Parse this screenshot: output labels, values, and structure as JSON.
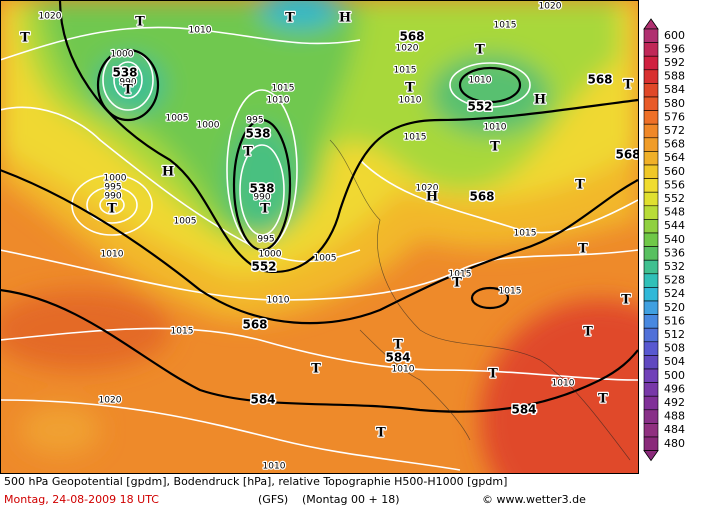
{
  "map": {
    "labels": [
      "1020",
      "T",
      "T",
      "H",
      "T",
      "1010",
      "1015",
      "1020",
      "568",
      "1020",
      "T",
      "568",
      "T",
      "1000",
      "538",
      "990",
      "T",
      "1015",
      "1010",
      "1015",
      "T",
      "1010",
      "1010",
      "552",
      "H",
      "1005",
      "1000",
      "995",
      "538",
      "T",
      "1010",
      "1015",
      "T",
      "568",
      "H",
      "1000",
      "995",
      "990",
      "T",
      "538",
      "990",
      "T",
      "1020",
      "H",
      "568",
      "T",
      "1005",
      "995",
      "1010",
      "1000",
      "552",
      "1005",
      "1015",
      "T",
      "1015",
      "T",
      "1015",
      "1010",
      "568",
      "T",
      "1015",
      "T",
      "584",
      "1010",
      "T",
      "T",
      "T",
      "1010",
      "1020",
      "584",
      "T",
      "584",
      "T",
      "1010"
    ]
  },
  "legend": {
    "levels": [
      600,
      596,
      592,
      588,
      584,
      580,
      576,
      572,
      568,
      564,
      560,
      556,
      552,
      548,
      544,
      540,
      536,
      532,
      528,
      524,
      520,
      516,
      512,
      508,
      504,
      500,
      496,
      492,
      488,
      484,
      480
    ],
    "colors": [
      "#b03070",
      "#c02858",
      "#d02040",
      "#d83030",
      "#e04828",
      "#e85a28",
      "#ee7028",
      "#f08828",
      "#f09c28",
      "#f0b028",
      "#f0c828",
      "#f0dc30",
      "#e0e030",
      "#b8dc38",
      "#90d040",
      "#70c848",
      "#58c060",
      "#40c090",
      "#30c0b8",
      "#30b8d8",
      "#40a0e0",
      "#4888e0",
      "#5070d8",
      "#5858d0",
      "#6048c0",
      "#7040b8",
      "#7838a8",
      "#803098",
      "#883088",
      "#903080",
      "#8a2a7a"
    ]
  },
  "footer": {
    "description": "500 hPa Geopotential [gpdm], Bodendruck [hPa], relative Topographie H500-H1000 [gpdm]",
    "date": "Montag, 24-08-2009   18 UTC",
    "model": "(GFS)",
    "run": "(Montag 00 + 18)",
    "copyright": "© www.wetter3.de"
  }
}
